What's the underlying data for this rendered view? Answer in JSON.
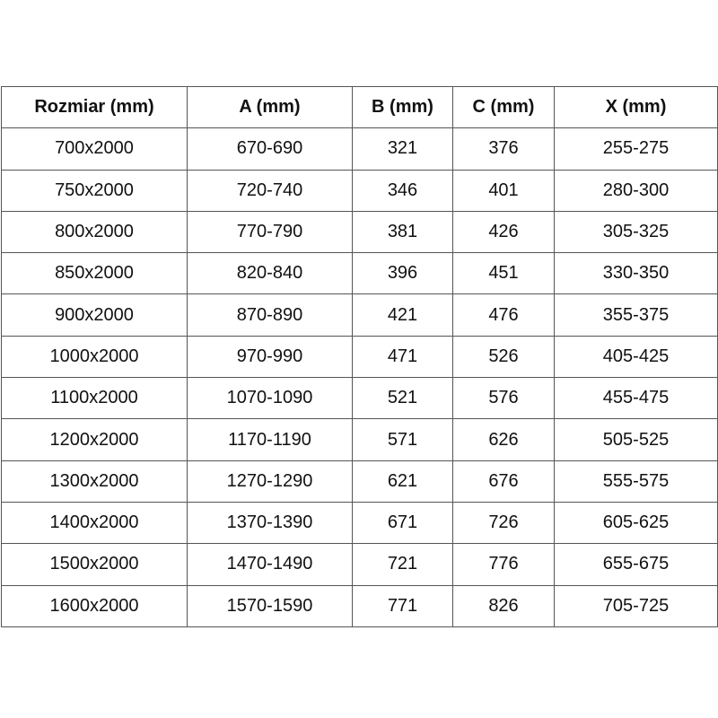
{
  "table": {
    "headers": [
      "Rozmiar (mm)",
      "A (mm)",
      "B (mm)",
      "C (mm)",
      "X (mm)"
    ],
    "rows": [
      [
        "700x2000",
        "670-690",
        "321",
        "376",
        "255-275"
      ],
      [
        "750x2000",
        "720-740",
        "346",
        "401",
        "280-300"
      ],
      [
        "800x2000",
        "770-790",
        "381",
        "426",
        "305-325"
      ],
      [
        "850x2000",
        "820-840",
        "396",
        "451",
        "330-350"
      ],
      [
        "900x2000",
        "870-890",
        "421",
        "476",
        "355-375"
      ],
      [
        "1000x2000",
        "970-990",
        "471",
        "526",
        "405-425"
      ],
      [
        "1100x2000",
        "1070-1090",
        "521",
        "576",
        "455-475"
      ],
      [
        "1200x2000",
        "1170-1190",
        "571",
        "626",
        "505-525"
      ],
      [
        "1300x2000",
        "1270-1290",
        "621",
        "676",
        "555-575"
      ],
      [
        "1400x2000",
        "1370-1390",
        "671",
        "726",
        "605-625"
      ],
      [
        "1500x2000",
        "1470-1490",
        "721",
        "776",
        "655-675"
      ],
      [
        "1600x2000",
        "1570-1590",
        "771",
        "826",
        "705-725"
      ]
    ]
  }
}
